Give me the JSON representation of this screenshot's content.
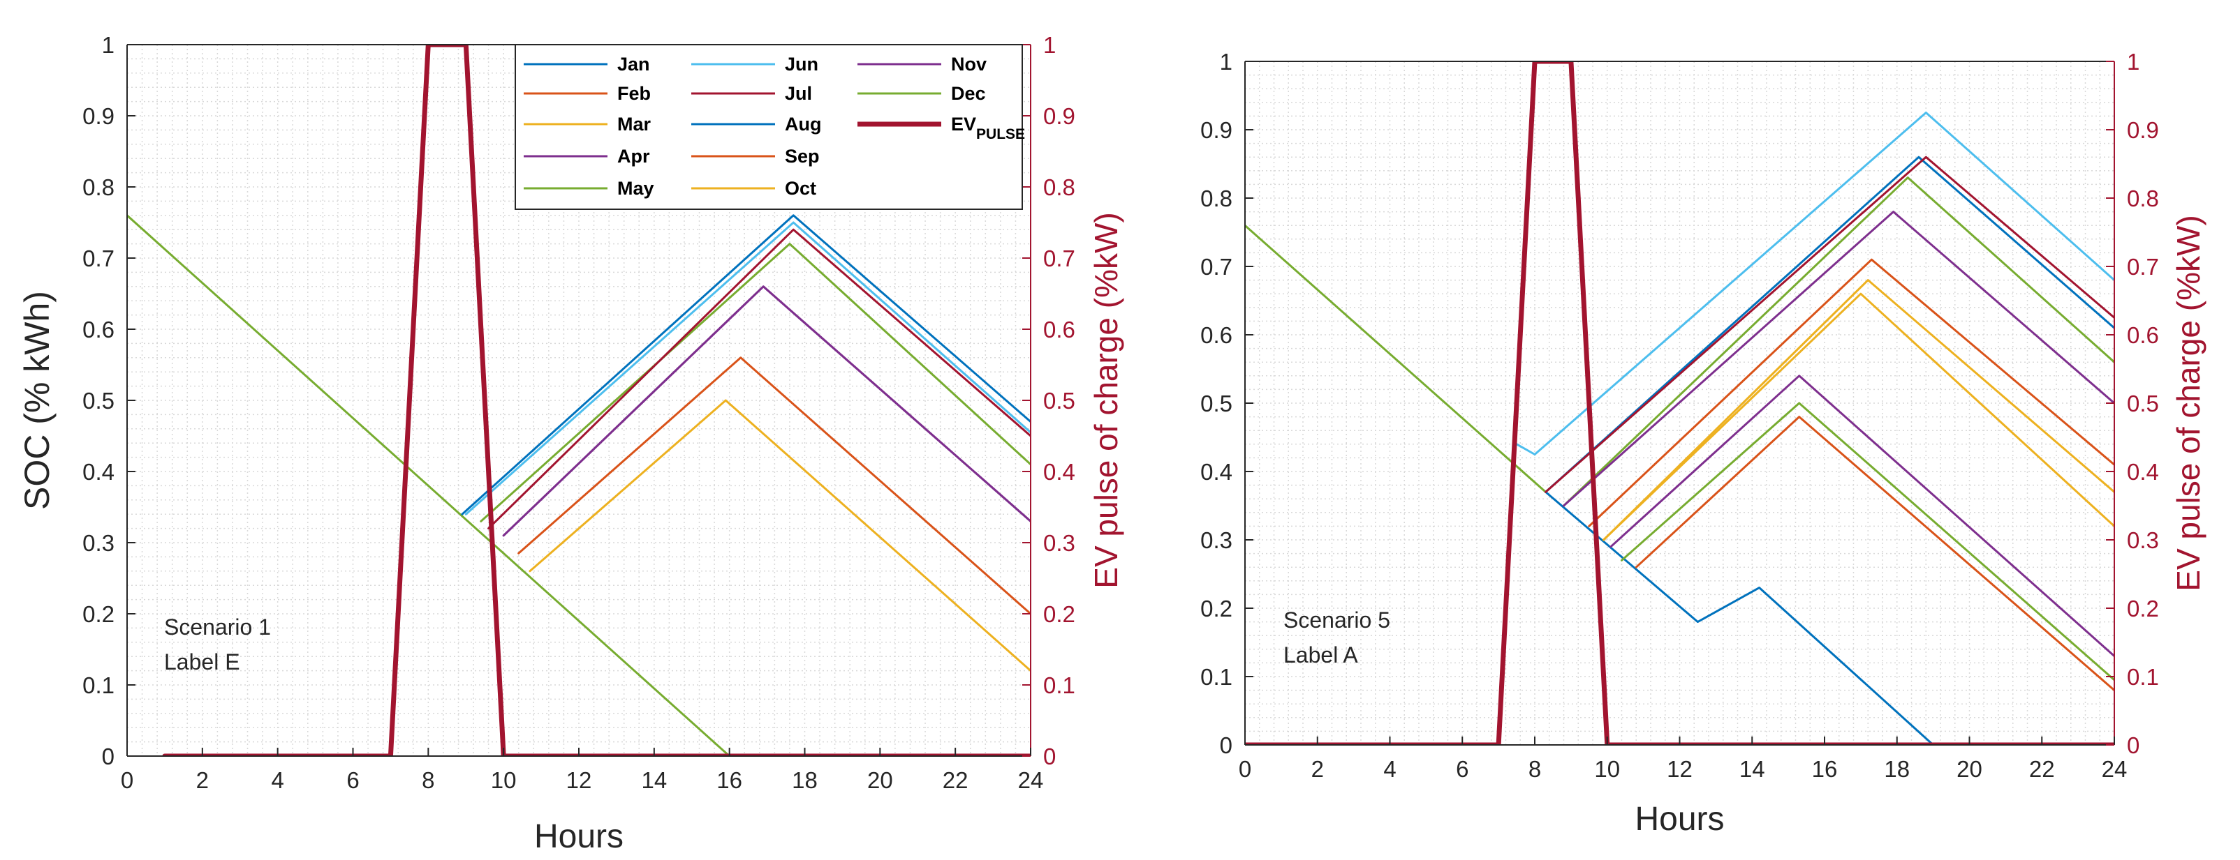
{
  "colors": {
    "Jan": "#0072BD",
    "Feb": "#D95319",
    "Mar": "#EDB120",
    "Apr": "#7E2F8E",
    "May": "#77AC30",
    "Jun": "#4DBEEE",
    "Jul": "#A2142F",
    "Aug": "#0072BD",
    "Sep": "#D95319",
    "Oct": "#EDB120",
    "Nov": "#7E2F8E",
    "Dec": "#77AC30",
    "EV": "#A2142F",
    "right_axis": "#A2142F",
    "grid": "#d9d9d9",
    "axis": "#262626"
  },
  "chart_data": [
    {
      "type": "line",
      "ylabel": "SOC (% kWh)",
      "xlabel": "Hours",
      "ylabel_right": "EV pulse of charge (%kW)",
      "xlim": [
        0,
        24
      ],
      "ylim": [
        0,
        1
      ],
      "ylim_right": [
        0,
        1
      ],
      "x_ticks": [
        "0",
        "2",
        "4",
        "6",
        "8",
        "10",
        "12",
        "14",
        "16",
        "18",
        "20",
        "22",
        "24"
      ],
      "y_ticks": [
        "0",
        "0.1",
        "0.2",
        "0.3",
        "0.4",
        "0.5",
        "0.6",
        "0.7",
        "0.8",
        "0.9",
        "1"
      ],
      "y_ticks_right": [
        "0",
        "0.1",
        "0.2",
        "0.3",
        "0.4",
        "0.5",
        "0.6",
        "0.7",
        "0.8",
        "0.9",
        "1"
      ],
      "grid": "minor",
      "annotation": [
        "Scenario 1",
        "Label E"
      ],
      "legend": {
        "position": "top-right",
        "columns": [
          [
            "Jan",
            "Feb",
            "Mar",
            "Apr",
            "May"
          ],
          [
            "Jun",
            "Jul",
            "Aug",
            "Sep",
            "Oct"
          ],
          [
            "Nov",
            "Dec",
            "EV_PULSE"
          ]
        ],
        "ev_label_main": "EV",
        "ev_label_sub": "PULSE"
      },
      "series": [
        {
          "name": "May",
          "points": [
            [
              0,
              0.76
            ],
            [
              16,
              0.0
            ]
          ]
        },
        {
          "name": "Oct",
          "points": [
            [
              10.7,
              0.26
            ],
            [
              15.9,
              0.5
            ],
            [
              24,
              0.12
            ]
          ]
        },
        {
          "name": "Feb",
          "points": [
            [
              10.4,
              0.285
            ],
            [
              16.3,
              0.56
            ],
            [
              24,
              0.2
            ]
          ]
        },
        {
          "name": "Apr",
          "points": [
            [
              10.0,
              0.31
            ],
            [
              16.9,
              0.66
            ],
            [
              24,
              0.33
            ]
          ]
        },
        {
          "name": "Nov",
          "points": [
            [
              10.0,
              0.31
            ],
            [
              16.9,
              0.66
            ],
            [
              24,
              0.33
            ]
          ]
        },
        {
          "name": "Dec",
          "points": [
            [
              9.4,
              0.33
            ],
            [
              17.6,
              0.72
            ],
            [
              24,
              0.41
            ]
          ]
        },
        {
          "name": "Jul",
          "points": [
            [
              9.6,
              0.32
            ],
            [
              17.7,
              0.74
            ],
            [
              24,
              0.45
            ]
          ]
        },
        {
          "name": "Jun",
          "points": [
            [
              9.0,
              0.34
            ],
            [
              17.7,
              0.75
            ],
            [
              24,
              0.455
            ]
          ]
        },
        {
          "name": "Jan",
          "points": [
            [
              8.9,
              0.34
            ],
            [
              17.7,
              0.76
            ],
            [
              24,
              0.47
            ]
          ]
        },
        {
          "name": "EV",
          "points": [
            [
              1,
              0
            ],
            [
              7,
              0
            ],
            [
              8,
              1
            ],
            [
              9,
              1
            ],
            [
              10,
              0
            ],
            [
              24,
              0
            ]
          ]
        }
      ]
    },
    {
      "type": "line",
      "ylabel": "",
      "xlabel": "Hours",
      "ylabel_right": "EV pulse of charge (%kW)",
      "xlim": [
        0,
        24
      ],
      "ylim": [
        0,
        1
      ],
      "ylim_right": [
        0,
        1
      ],
      "x_ticks": [
        "0",
        "2",
        "4",
        "6",
        "8",
        "10",
        "12",
        "14",
        "16",
        "18",
        "20",
        "22",
        "24"
      ],
      "y_ticks": [
        "0",
        "0.1",
        "0.2",
        "0.3",
        "0.4",
        "0.5",
        "0.6",
        "0.7",
        "0.8",
        "0.9",
        "1"
      ],
      "y_ticks_right": [
        "0",
        "0.1",
        "0.2",
        "0.3",
        "0.4",
        "0.5",
        "0.6",
        "0.7",
        "0.8",
        "0.9",
        "1"
      ],
      "grid": "minor",
      "annotation": [
        "Scenario 5",
        "Label A"
      ],
      "series": [
        {
          "name": "May",
          "points": [
            [
              0,
              0.76
            ],
            [
              8.3,
              0.37
            ]
          ]
        },
        {
          "name": "Jan",
          "points": [
            [
              8.3,
              0.37
            ],
            [
              12.5,
              0.18
            ],
            [
              14.2,
              0.23
            ],
            [
              19,
              0.0
            ]
          ]
        },
        {
          "name": "Jun",
          "points": [
            [
              7.5,
              0.44
            ],
            [
              8,
              0.425
            ],
            [
              18.8,
              0.925
            ],
            [
              24,
              0.68
            ]
          ]
        },
        {
          "name": "Aug",
          "points": [
            [
              8.3,
              0.37
            ],
            [
              18.6,
              0.86
            ],
            [
              24,
              0.61
            ]
          ]
        },
        {
          "name": "Jul",
          "points": [
            [
              8.3,
              0.37
            ],
            [
              18.8,
              0.86
            ],
            [
              24,
              0.625
            ]
          ]
        },
        {
          "name": "Dec",
          "points": [
            [
              8.8,
              0.35
            ],
            [
              18.3,
              0.83
            ],
            [
              24,
              0.56
            ]
          ]
        },
        {
          "name": "Nov",
          "points": [
            [
              8.8,
              0.35
            ],
            [
              17.9,
              0.78
            ],
            [
              24,
              0.5
            ]
          ]
        },
        {
          "name": "Sep",
          "points": [
            [
              9.5,
              0.32
            ],
            [
              17.3,
              0.71
            ],
            [
              24,
              0.41
            ]
          ]
        },
        {
          "name": "Oct",
          "points": [
            [
              9.9,
              0.3
            ],
            [
              17.2,
              0.68
            ],
            [
              24,
              0.37
            ]
          ]
        },
        {
          "name": "Mar",
          "points": [
            [
              9.9,
              0.3
            ],
            [
              17.0,
              0.66
            ],
            [
              24,
              0.32
            ]
          ]
        },
        {
          "name": "Apr",
          "points": [
            [
              10.1,
              0.29
            ],
            [
              15.3,
              0.54
            ],
            [
              24,
              0.13
            ]
          ]
        },
        {
          "name": "May",
          "points": [
            [
              10.4,
              0.27
            ],
            [
              15.3,
              0.5
            ],
            [
              24,
              0.095
            ]
          ]
        },
        {
          "name": "Feb",
          "points": [
            [
              10.8,
              0.26
            ],
            [
              15.3,
              0.48
            ],
            [
              24,
              0.08
            ]
          ]
        },
        {
          "name": "EV",
          "points": [
            [
              0,
              0
            ],
            [
              7,
              0
            ],
            [
              8,
              1
            ],
            [
              9,
              1
            ],
            [
              10,
              0
            ],
            [
              24,
              0
            ]
          ]
        }
      ]
    }
  ]
}
